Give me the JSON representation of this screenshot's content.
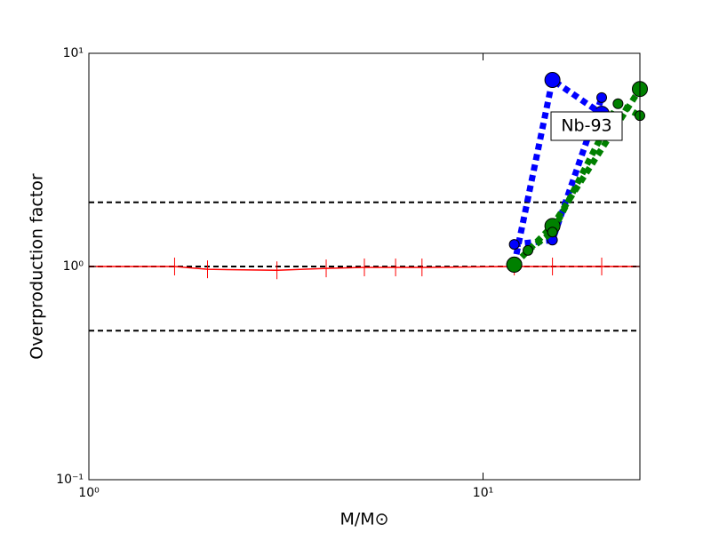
{
  "chart_data": {
    "type": "line",
    "xlabel": "M/M⊙",
    "ylabel": "Overproduction factor",
    "annotation": "Nb-93",
    "xscale": "log",
    "yscale": "log",
    "xlim": [
      1,
      25
    ],
    "ylim": [
      0.1,
      10
    ],
    "xticks": [
      {
        "value": 1,
        "label": "10⁰"
      },
      {
        "value": 10,
        "label": "10¹"
      }
    ],
    "yticks": [
      {
        "value": 0.1,
        "label": "10⁻¹"
      },
      {
        "value": 1,
        "label": "10⁰"
      },
      {
        "value": 10,
        "label": "10¹"
      }
    ],
    "hlines": [
      2,
      1,
      0.5
    ],
    "hline_color": "#000000",
    "series": [
      {
        "color": "#ff0000",
        "linestyle": "solid",
        "marker": "|",
        "x": [
          1,
          1.65,
          2,
          3,
          4,
          5,
          6,
          7,
          12,
          15,
          20,
          25
        ],
        "values": [
          1,
          1,
          0.97,
          0.96,
          0.98,
          0.99,
          0.99,
          0.99,
          1,
          1,
          1,
          1
        ]
      },
      {
        "color": "#0000ff",
        "linestyle": "dotted",
        "marker": "big",
        "x": [
          12,
          15,
          20
        ],
        "values": [
          1.02,
          7.5,
          5.2
        ]
      },
      {
        "color": "#0000ff",
        "linestyle": "dotted",
        "marker": "small",
        "x": [
          12,
          15,
          20
        ],
        "values": [
          1.27,
          1.33,
          6.2
        ]
      },
      {
        "color": "#008000",
        "linestyle": "dotted",
        "marker": "big",
        "x": [
          12,
          15,
          25
        ],
        "values": [
          1.02,
          1.55,
          6.8
        ]
      },
      {
        "color": "#008000",
        "linestyle": "dotted",
        "marker": "small",
        "x": [
          13,
          15,
          22,
          25
        ],
        "values": [
          1.19,
          1.45,
          5.8,
          5.1
        ]
      }
    ]
  }
}
